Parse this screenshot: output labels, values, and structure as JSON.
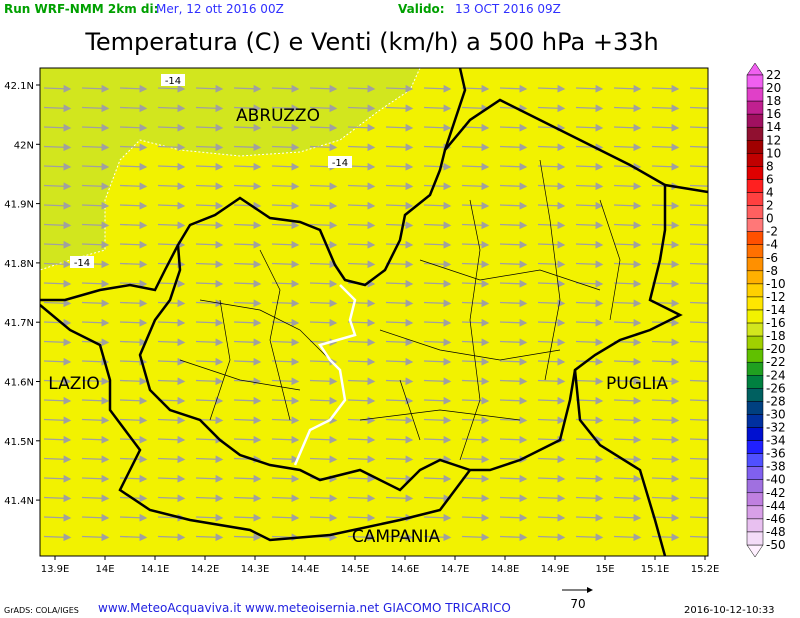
{
  "header": {
    "run_label": "Run WRF-NMM 2km di:",
    "run_date": "Mer, 12 ott 2016 00Z",
    "valid_label": "Valido:",
    "valid_date": "13 OCT 2016 09Z"
  },
  "title": "Temperatura (C) e Venti (km/h) a 500 hPa +33h",
  "map": {
    "lat_labels": [
      "42.1N",
      "42N",
      "41.9N",
      "41.8N",
      "41.7N",
      "41.6N",
      "41.5N",
      "41.4N"
    ],
    "lon_labels": [
      "13.9E",
      "14E",
      "14.1E",
      "14.2E",
      "14.3E",
      "14.4E",
      "14.5E",
      "14.6E",
      "14.7E",
      "14.8E",
      "14.9E",
      "15E",
      "15.1E",
      "15.2E"
    ],
    "regions": [
      "ABRUZZO",
      "LAZIO",
      "PUGLIA",
      "CAMPANIA"
    ],
    "contour_labels": [
      "-14",
      "-14",
      "-14"
    ]
  },
  "colorbar": {
    "values": [
      22,
      20,
      18,
      16,
      14,
      12,
      10,
      8,
      6,
      4,
      2,
      0,
      -2,
      -4,
      -6,
      -8,
      -10,
      -12,
      -14,
      -16,
      -18,
      -20,
      -22,
      -24,
      -26,
      -28,
      -30,
      -32,
      -34,
      -36,
      -38,
      -40,
      -42,
      -44,
      -46,
      -48,
      -50
    ],
    "colors": [
      "#f060f0",
      "#e040c8",
      "#c02090",
      "#a01060",
      "#901030",
      "#a00000",
      "#c00000",
      "#e00000",
      "#ff2020",
      "#ff4040",
      "#ff6060",
      "#ff7878",
      "#ff5000",
      "#ff7000",
      "#ff9000",
      "#ffb000",
      "#ffd000",
      "#ffe600",
      "#f2f200",
      "#d2e61e",
      "#a0d000",
      "#60c000",
      "#20a020",
      "#008040",
      "#006060",
      "#004080",
      "#0030a0",
      "#0010d0",
      "#2020ff",
      "#5050ff",
      "#8060f0",
      "#a070e0",
      "#c080e0",
      "#d8a0e8",
      "#e8c0f0",
      "#f4dcf8",
      "#fff0ff"
    ]
  },
  "footer": {
    "credit": "GrADS: COLA/IGES",
    "sites": "www.MeteoAcquaviva.it www.meteoisernia.net GIACOMO TRICARICO",
    "wind_scale": "70",
    "timestamp": "2016-10-12-10:33"
  }
}
